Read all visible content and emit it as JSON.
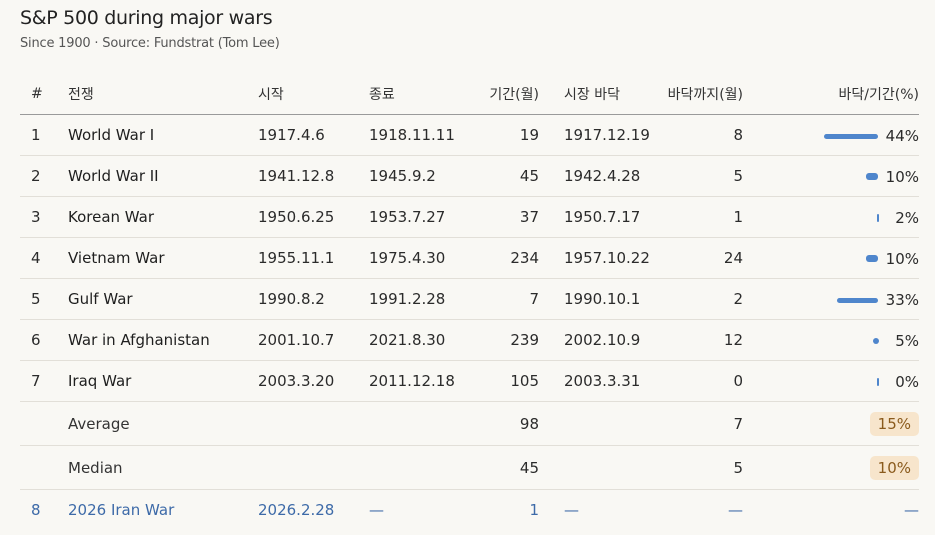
{
  "title": "S&P 500 during major wars",
  "subtitle": "Since 1900 · Source: Fundstrat (Tom Lee)",
  "headers": {
    "num": "#",
    "war": "전쟁",
    "start": "시작",
    "end": "종료",
    "duration": "기간(월)",
    "bottom": "시장 바닥",
    "to_bottom": "바닥까지(월)",
    "pct": "바닥/기간(%)"
  },
  "rows": [
    {
      "num": "1",
      "war": "World War I",
      "start": "1917.4.6",
      "end": "1918.11.11",
      "duration": "19",
      "bottom": "1917.12.19",
      "to_bottom": "8",
      "pct": "44%",
      "pct_value": 44
    },
    {
      "num": "2",
      "war": "World War II",
      "start": "1941.12.8",
      "end": "1945.9.2",
      "duration": "45",
      "bottom": "1942.4.28",
      "to_bottom": "5",
      "pct": "10%",
      "pct_value": 10
    },
    {
      "num": "3",
      "war": "Korean War",
      "start": "1950.6.25",
      "end": "1953.7.27",
      "duration": "37",
      "bottom": "1950.7.17",
      "to_bottom": "1",
      "pct": "2%",
      "pct_value": 2
    },
    {
      "num": "4",
      "war": "Vietnam War",
      "start": "1955.11.1",
      "end": "1975.4.30",
      "duration": "234",
      "bottom": "1957.10.22",
      "to_bottom": "24",
      "pct": "10%",
      "pct_value": 10
    },
    {
      "num": "5",
      "war": "Gulf War",
      "start": "1990.8.2",
      "end": "1991.2.28",
      "duration": "7",
      "bottom": "1990.10.1",
      "to_bottom": "2",
      "pct": "33%",
      "pct_value": 33
    },
    {
      "num": "6",
      "war": "War in Afghanistan",
      "start": "2001.10.7",
      "end": "2021.8.30",
      "duration": "239",
      "bottom": "2002.10.9",
      "to_bottom": "12",
      "pct": "5%",
      "pct_value": 5
    },
    {
      "num": "7",
      "war": "Iraq War",
      "start": "2003.3.20",
      "end": "2011.12.18",
      "duration": "105",
      "bottom": "2003.3.31",
      "to_bottom": "0",
      "pct": "0%",
      "pct_value": 0
    }
  ],
  "summary": [
    {
      "label": "Average",
      "duration": "98",
      "to_bottom": "7",
      "pct": "15%"
    },
    {
      "label": "Median",
      "duration": "45",
      "to_bottom": "5",
      "pct": "10%"
    }
  ],
  "current": {
    "num": "8",
    "war": "2026 Iran War",
    "start": "2026.2.28",
    "end": "—",
    "duration": "1",
    "bottom": "—",
    "to_bottom": "—",
    "pct": "—"
  },
  "colors": {
    "accent": "#4f86cc",
    "badge_bg": "#f7e5cc",
    "badge_text": "#8a5a1c",
    "current_row": "#3d6aa8",
    "background": "#f9f8f4"
  }
}
